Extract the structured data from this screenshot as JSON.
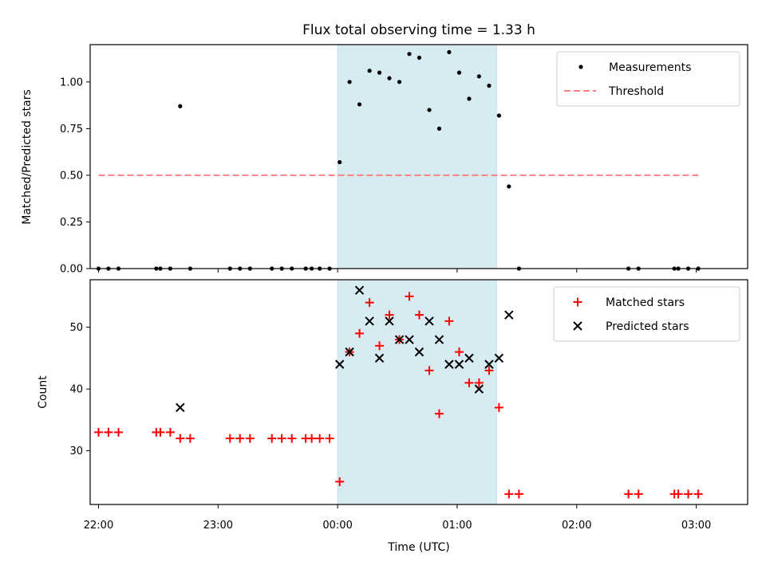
{
  "chart_data": {
    "type": "scatter",
    "title": "Flux total observing time = 1.33 h",
    "xlabel": "Time (UTC)",
    "x_unit": "hours (UTC, continuing past midnight)",
    "xlim": [
      21.93,
      3.43
    ],
    "x_ticks": [
      {
        "value": 22.0,
        "label": "22:00"
      },
      {
        "value": 23.0,
        "label": "23:00"
      },
      {
        "value": 0.0,
        "label": "00:00"
      },
      {
        "value": 1.0,
        "label": "01:00"
      },
      {
        "value": 2.0,
        "label": "02:00"
      },
      {
        "value": 3.0,
        "label": "03:00"
      }
    ],
    "observing_window": {
      "start": 0.0,
      "end": 1.33,
      "color": "#add8e6"
    },
    "panels": [
      {
        "id": "ratio",
        "ylabel": "Matched/Predicted stars",
        "ylim": [
          0.0,
          1.2
        ],
        "y_ticks": [
          {
            "value": 0.0,
            "label": "0.00"
          },
          {
            "value": 0.25,
            "label": "0.25"
          },
          {
            "value": 0.5,
            "label": "0.50"
          },
          {
            "value": 0.75,
            "label": "0.75"
          },
          {
            "value": 1.0,
            "label": "1.00"
          }
        ],
        "legend": {
          "position": "upper right"
        },
        "series": [
          {
            "name": "Measurements",
            "marker": "dot",
            "color": "#000000",
            "x": [
              22.0,
              22.083,
              22.167,
              22.483,
              22.517,
              22.6,
              22.683,
              22.767,
              23.1,
              23.183,
              23.267,
              23.45,
              23.533,
              23.617,
              23.733,
              23.783,
              23.85,
              23.933,
              0.017,
              0.1,
              0.183,
              0.267,
              0.35,
              0.433,
              0.517,
              0.6,
              0.683,
              0.767,
              0.85,
              0.933,
              1.017,
              1.1,
              1.183,
              1.267,
              1.35,
              1.433,
              1.517,
              2.433,
              2.517,
              2.817,
              2.85,
              2.933,
              3.017
            ],
            "y": [
              0.0,
              0.0,
              0.0,
              0.0,
              0.0,
              0.0,
              0.87,
              0.0,
              0.0,
              0.0,
              0.0,
              0.0,
              0.0,
              0.0,
              0.0,
              0.0,
              0.0,
              0.0,
              0.57,
              1.0,
              0.88,
              1.06,
              1.05,
              1.02,
              1.0,
              1.15,
              1.13,
              0.85,
              0.75,
              1.16,
              1.05,
              0.91,
              1.03,
              0.98,
              0.82,
              0.44,
              0.0,
              0.0,
              0.0,
              0.0,
              0.0,
              0.0,
              0.0
            ]
          },
          {
            "name": "Threshold",
            "marker": "dashed-line",
            "color": "#ff7f7f",
            "x": [
              22.0,
              3.017
            ],
            "y": [
              0.5,
              0.5
            ]
          }
        ]
      },
      {
        "id": "count",
        "ylabel": "Count",
        "ylim": [
          21.3,
          57.7
        ],
        "y_ticks": [
          {
            "value": 30,
            "label": "30"
          },
          {
            "value": 40,
            "label": "40"
          },
          {
            "value": 50,
            "label": "50"
          }
        ],
        "legend": {
          "position": "upper right"
        },
        "series": [
          {
            "name": "Matched stars",
            "marker": "plus",
            "color": "#ff0000",
            "x": [
              22.0,
              22.083,
              22.167,
              22.483,
              22.517,
              22.6,
              22.683,
              22.767,
              23.1,
              23.183,
              23.267,
              23.45,
              23.533,
              23.617,
              23.733,
              23.783,
              23.85,
              23.933,
              0.017,
              0.1,
              0.183,
              0.267,
              0.35,
              0.433,
              0.517,
              0.6,
              0.683,
              0.767,
              0.85,
              0.933,
              1.017,
              1.1,
              1.183,
              1.267,
              1.35,
              1.433,
              1.517,
              2.433,
              2.517,
              2.817,
              2.85,
              2.933,
              3.017
            ],
            "y": [
              33,
              33,
              33,
              33,
              33,
              33,
              32,
              32,
              32,
              32,
              32,
              32,
              32,
              32,
              32,
              32,
              32,
              32,
              25,
              46,
              49,
              54,
              47,
              52,
              48,
              55,
              52,
              43,
              36,
              51,
              46,
              41,
              41,
              43,
              37,
              23,
              23,
              23,
              23,
              23,
              23,
              23,
              23
            ]
          },
          {
            "name": "Predicted stars",
            "marker": "x",
            "color": "#000000",
            "x": [
              22.683,
              0.017,
              0.1,
              0.183,
              0.267,
              0.35,
              0.433,
              0.517,
              0.6,
              0.683,
              0.767,
              0.85,
              0.933,
              1.017,
              1.1,
              1.183,
              1.267,
              1.35,
              1.433
            ],
            "y": [
              37,
              44,
              46,
              56,
              51,
              45,
              51,
              48,
              48,
              46,
              51,
              48,
              44,
              44,
              45,
              40,
              44,
              45,
              52
            ]
          }
        ]
      }
    ]
  }
}
